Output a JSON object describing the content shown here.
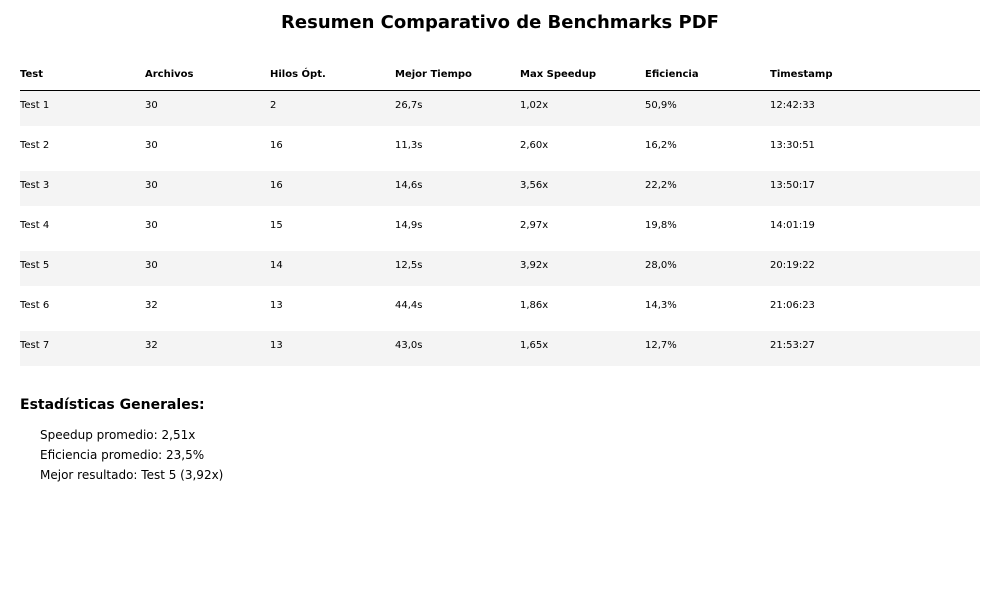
{
  "chart_data": {
    "type": "table",
    "title": "Resumen Comparativo de Benchmarks PDF",
    "columns": [
      "Test",
      "Archivos",
      "Hilos Ópt.",
      "Mejor Tiempo",
      "Max Speedup",
      "Eficiencia",
      "Timestamp"
    ],
    "rows": [
      [
        "Test 1",
        "30",
        "2",
        "26,7s",
        "1,02x",
        "50,9%",
        "12:42:33"
      ],
      [
        "Test 2",
        "30",
        "16",
        "11,3s",
        "2,60x",
        "16,2%",
        "13:30:51"
      ],
      [
        "Test 3",
        "30",
        "16",
        "14,6s",
        "3,56x",
        "22,2%",
        "13:50:17"
      ],
      [
        "Test 4",
        "30",
        "15",
        "14,9s",
        "2,97x",
        "19,8%",
        "14:01:19"
      ],
      [
        "Test 5",
        "30",
        "14",
        "12,5s",
        "3,92x",
        "28,0%",
        "20:19:22"
      ],
      [
        "Test 6",
        "32",
        "13",
        "44,4s",
        "1,86x",
        "14,3%",
        "21:06:23"
      ],
      [
        "Test 7",
        "32",
        "13",
        "43,0s",
        "1,65x",
        "12,7%",
        "21:53:27"
      ]
    ]
  },
  "stats": {
    "title": "Estadísticas Generales:",
    "lines": [
      "Speedup promedio: 2,51x",
      "Eficiencia promedio: 23,5%",
      "Mejor resultado: Test 5 (3,92x)"
    ]
  }
}
